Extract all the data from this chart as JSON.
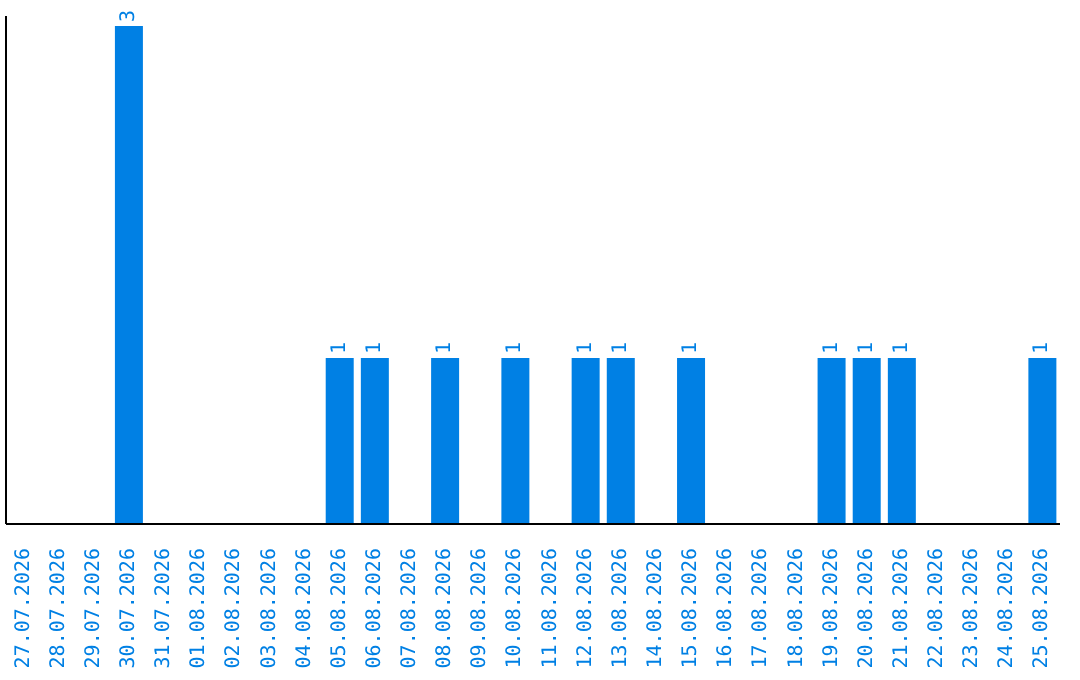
{
  "chart_data": {
    "type": "bar",
    "categories": [
      "27.07.2026",
      "28.07.2026",
      "29.07.2026",
      "30.07.2026",
      "31.07.2026",
      "01.08.2026",
      "02.08.2026",
      "03.08.2026",
      "04.08.2026",
      "05.08.2026",
      "06.08.2026",
      "07.08.2026",
      "08.08.2026",
      "09.08.2026",
      "10.08.2026",
      "11.08.2026",
      "12.08.2026",
      "13.08.2026",
      "14.08.2026",
      "15.08.2026",
      "16.08.2026",
      "17.08.2026",
      "18.08.2026",
      "19.08.2026",
      "20.08.2026",
      "21.08.2026",
      "22.08.2026",
      "23.08.2026",
      "24.08.2026",
      "25.08.2026"
    ],
    "values": [
      0,
      0,
      0,
      3,
      0,
      0,
      0,
      0,
      0,
      1,
      1,
      0,
      1,
      0,
      1,
      0,
      1,
      1,
      0,
      1,
      0,
      0,
      0,
      1,
      1,
      1,
      0,
      0,
      0,
      1
    ],
    "value_labels": [
      null,
      null,
      null,
      "3",
      null,
      null,
      null,
      null,
      null,
      "1",
      "1",
      null,
      "1",
      null,
      "1",
      null,
      "1",
      "1",
      null,
      "1",
      null,
      null,
      null,
      "1",
      "1",
      "1",
      null,
      null,
      null,
      "1"
    ],
    "color": "#0080e4",
    "grid": false,
    "legend": false
  }
}
